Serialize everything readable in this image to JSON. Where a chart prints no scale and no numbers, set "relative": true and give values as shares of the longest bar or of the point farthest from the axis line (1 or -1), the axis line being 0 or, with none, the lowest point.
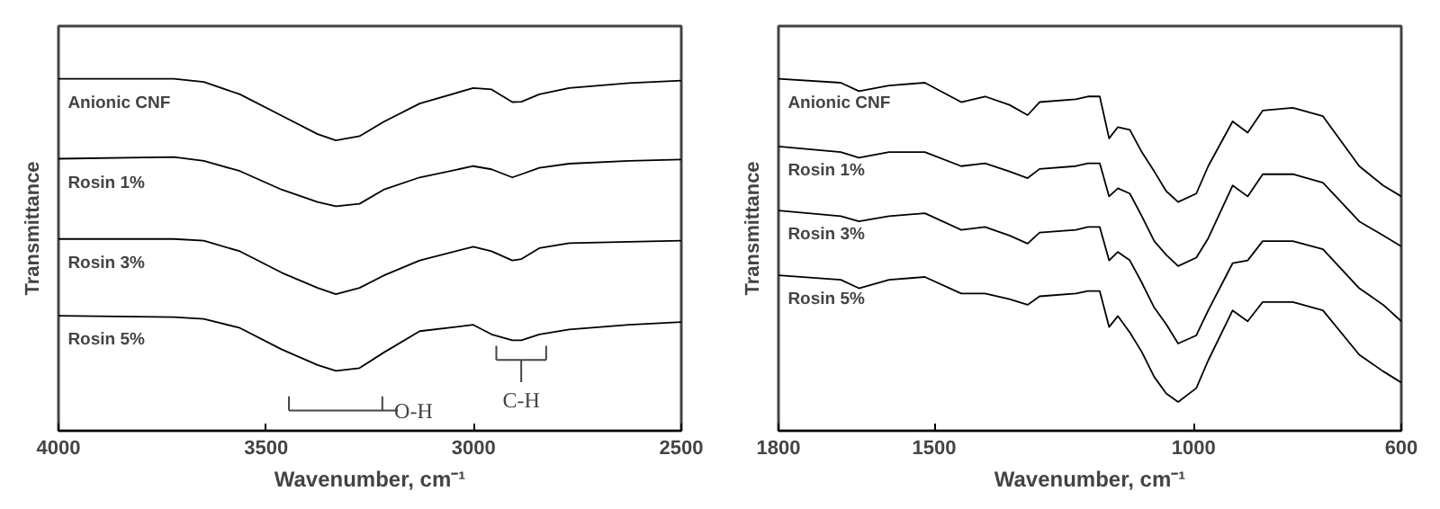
{
  "chart_data": [
    {
      "type": "line",
      "xlabel": "Wavenumber, cm⁻¹",
      "ylabel": "Transmittance",
      "relative": true,
      "xlim": [
        4000,
        2500
      ],
      "xticks": [
        4000,
        3500,
        3000,
        2500
      ],
      "grid": false,
      "x": [
        4000,
        3722,
        3650,
        3563,
        3462,
        3376,
        3332,
        3275,
        3217,
        3130,
        3001,
        2957,
        2907,
        2885,
        2842,
        2770,
        2626,
        2500
      ],
      "series": [
        {
          "name": "Anionic CNF",
          "color": "#000000",
          "values": [
            1.0,
            1.0,
            0.991,
            0.956,
            0.895,
            0.843,
            0.825,
            0.837,
            0.878,
            0.93,
            0.974,
            0.97,
            0.934,
            0.935,
            0.956,
            0.974,
            0.988,
            0.995
          ]
        },
        {
          "name": "Rosin  1%",
          "color": "#000000",
          "values": [
            0.773,
            0.778,
            0.767,
            0.738,
            0.685,
            0.65,
            0.638,
            0.645,
            0.685,
            0.72,
            0.752,
            0.743,
            0.72,
            0.729,
            0.747,
            0.759,
            0.767,
            0.771
          ]
        },
        {
          "name": "Rosin 3%",
          "color": "#000000",
          "values": [
            0.545,
            0.545,
            0.54,
            0.51,
            0.449,
            0.406,
            0.388,
            0.406,
            0.441,
            0.484,
            0.523,
            0.51,
            0.484,
            0.488,
            0.519,
            0.533,
            0.537,
            0.54
          ]
        },
        {
          "name": "Rosin 5%",
          "color": "#000000",
          "values": [
            0.327,
            0.323,
            0.318,
            0.292,
            0.231,
            0.187,
            0.17,
            0.178,
            0.222,
            0.283,
            0.301,
            0.274,
            0.257,
            0.257,
            0.274,
            0.288,
            0.301,
            0.309
          ]
        }
      ],
      "annotations": [
        "O-H",
        "C-H"
      ]
    },
    {
      "type": "line",
      "xlabel": "Wavenumber, cm⁻¹",
      "ylabel": "Transmittance",
      "relative": true,
      "xlim": [
        1800,
        600
      ],
      "xticks": [
        1800,
        1500,
        1000,
        600
      ],
      "grid": false,
      "x": [
        1800,
        1680,
        1645,
        1587,
        1518,
        1448,
        1402,
        1355,
        1320,
        1297,
        1227,
        1204,
        1181,
        1163,
        1146,
        1123,
        1100,
        1076,
        1053,
        1030,
        995,
        972,
        925,
        896,
        867,
        809,
        751,
        681,
        635,
        600
      ],
      "series": [
        {
          "name": "Anionic CNF",
          "color": "#000000",
          "values": [
            1.0,
            0.989,
            0.965,
            0.981,
            0.989,
            0.934,
            0.95,
            0.926,
            0.897,
            0.934,
            0.942,
            0.95,
            0.95,
            0.831,
            0.863,
            0.855,
            0.792,
            0.737,
            0.681,
            0.65,
            0.674,
            0.752,
            0.879,
            0.847,
            0.91,
            0.918,
            0.894,
            0.752,
            0.697,
            0.666
          ]
        },
        {
          "name": "Rosin 1%",
          "color": "#000000",
          "values": [
            0.808,
            0.792,
            0.776,
            0.792,
            0.792,
            0.752,
            0.76,
            0.737,
            0.718,
            0.744,
            0.752,
            0.76,
            0.76,
            0.666,
            0.689,
            0.674,
            0.61,
            0.539,
            0.5,
            0.468,
            0.492,
            0.547,
            0.697,
            0.666,
            0.729,
            0.729,
            0.705,
            0.595,
            0.555,
            0.524
          ]
        },
        {
          "name": "Rosin 3%",
          "color": "#000000",
          "values": [
            0.626,
            0.61,
            0.595,
            0.61,
            0.618,
            0.571,
            0.579,
            0.555,
            0.532,
            0.563,
            0.571,
            0.579,
            0.579,
            0.484,
            0.508,
            0.484,
            0.421,
            0.35,
            0.303,
            0.248,
            0.271,
            0.342,
            0.476,
            0.484,
            0.539,
            0.539,
            0.516,
            0.405,
            0.358,
            0.311
          ]
        },
        {
          "name": "Rosin 5%",
          "color": "#000000",
          "values": [
            0.442,
            0.429,
            0.405,
            0.429,
            0.437,
            0.39,
            0.39,
            0.374,
            0.358,
            0.382,
            0.39,
            0.397,
            0.397,
            0.295,
            0.326,
            0.279,
            0.224,
            0.153,
            0.106,
            0.082,
            0.121,
            0.2,
            0.342,
            0.311,
            0.366,
            0.366,
            0.342,
            0.216,
            0.169,
            0.137
          ]
        }
      ]
    }
  ]
}
